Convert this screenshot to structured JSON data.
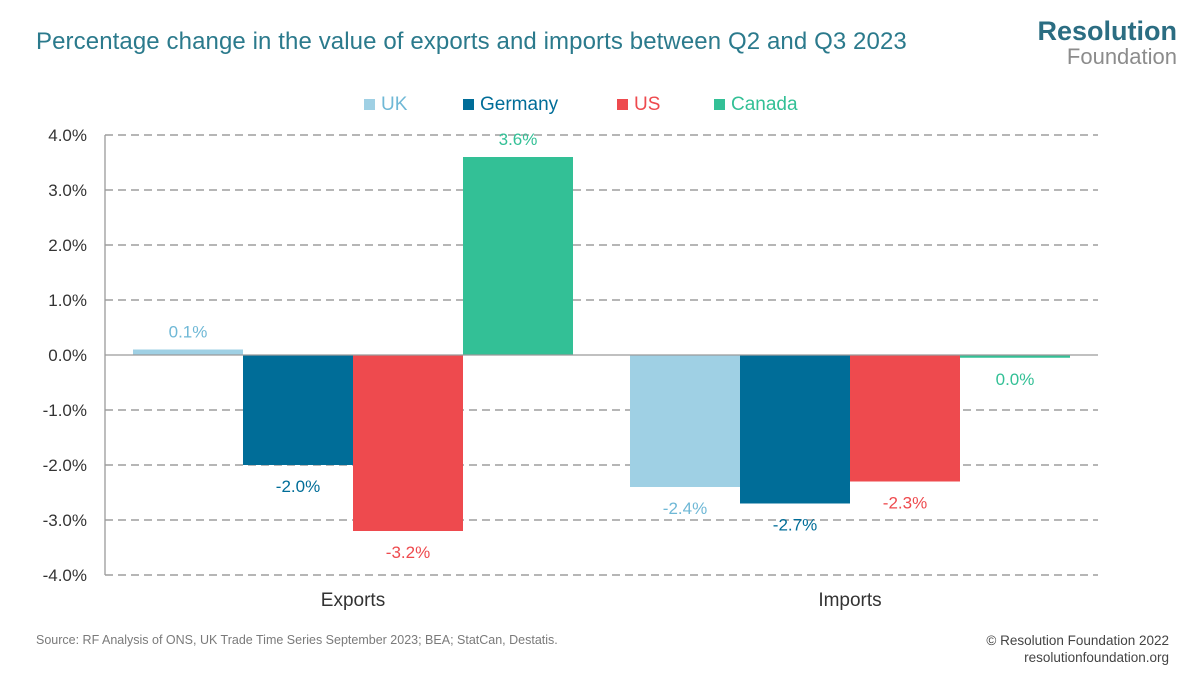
{
  "title": "Percentage change in the value of exports and imports between Q2 and Q3 2023",
  "logo": {
    "line1": "Resolution",
    "line2": "Foundation"
  },
  "footer": {
    "source": "Source: RF Analysis of ONS, UK Trade Time Series September 2023; BEA; StatCan, Destatis.",
    "copyright": "© Resolution Foundation 2022",
    "website": "resolutionfoundation.org"
  },
  "chart_data": {
    "type": "bar",
    "title": "Percentage change in the value of exports and imports between Q2 and Q3 2023",
    "categories": [
      "Exports",
      "Imports"
    ],
    "series": [
      {
        "name": "UK",
        "color": "#9fd0e4",
        "values": [
          0.1,
          -2.4
        ],
        "labels": [
          "0.1%",
          "-2.4%"
        ]
      },
      {
        "name": "Germany",
        "color": "#006d98",
        "values": [
          -2.0,
          -2.7
        ],
        "labels": [
          "-2.0%",
          "-2.7%"
        ]
      },
      {
        "name": "US",
        "color": "#ee4a4e",
        "values": [
          -3.2,
          -2.3
        ],
        "labels": [
          "-3.2%",
          "-2.3%"
        ]
      },
      {
        "name": "Canada",
        "color": "#33c096",
        "values": [
          3.6,
          -0.05
        ],
        "labels": [
          "3.6%",
          "0.0%"
        ]
      }
    ],
    "ylim": [
      -4.0,
      4.0
    ],
    "yticks": [
      4.0,
      3.0,
      2.0,
      1.0,
      0.0,
      -1.0,
      -2.0,
      -3.0,
      -4.0
    ],
    "ytick_labels": [
      "4.0%",
      "3.0%",
      "2.0%",
      "1.0%",
      "0.0%",
      "-1.0%",
      "-2.0%",
      "-3.0%",
      "-4.0%"
    ],
    "xlabel": "",
    "ylabel": "",
    "legend": "top-center",
    "grid": true
  }
}
